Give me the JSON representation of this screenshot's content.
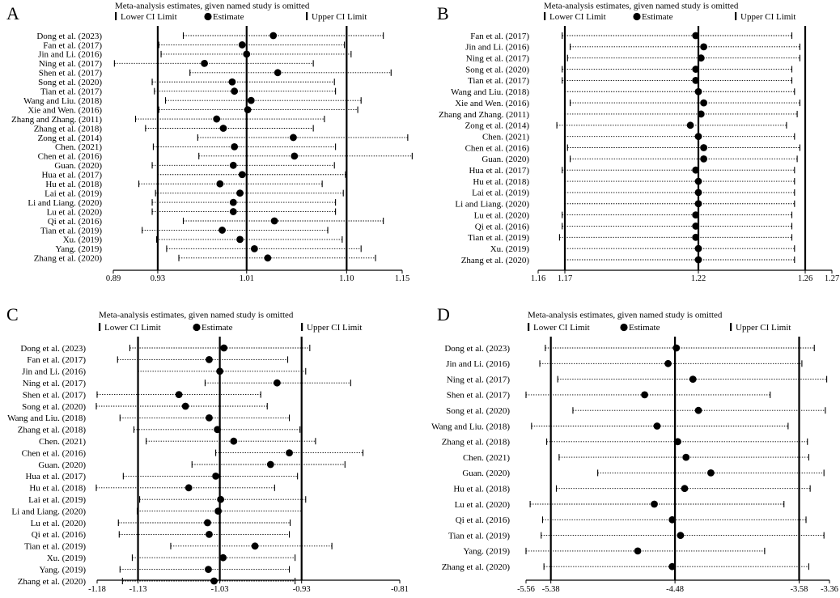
{
  "figure": {
    "legend_header": "Meta-analysis estimates, given named study is omitted",
    "legend_lower": "Lower CI Limit",
    "legend_estimate": "Estimate",
    "legend_upper": "Upper CI Limit",
    "colors": {
      "ink": "#000000",
      "background": "#ffffff"
    }
  },
  "chart_data": [
    {
      "type": "forest",
      "panel": "A",
      "title": "Meta-analysis estimates, given named study is omitted",
      "xlim": [
        0.89,
        1.15
      ],
      "tick_values": [
        0.89,
        0.93,
        1.01,
        1.1,
        1.15
      ],
      "tick_labels": [
        "0.89",
        "0.93",
        "1.01",
        "1.10",
        "1.15"
      ],
      "overall": {
        "lower": 0.93,
        "estimate": 1.01,
        "upper": 1.1
      },
      "studies": [
        {
          "label": "Dong et al. (2023)",
          "estimate": 1.034,
          "lower": 0.953,
          "upper": 1.133
        },
        {
          "label": "Fan et al. (2017)",
          "estimate": 1.006,
          "lower": 0.931,
          "upper": 1.098
        },
        {
          "label": "Jin and Li. (2016)",
          "estimate": 1.01,
          "lower": 0.933,
          "upper": 1.104
        },
        {
          "label": "Ning et al. (2017)",
          "estimate": 0.972,
          "lower": 0.891,
          "upper": 1.07
        },
        {
          "label": "Shen et al. (2017)",
          "estimate": 1.038,
          "lower": 0.959,
          "upper": 1.14
        },
        {
          "label": "Song et al. (2020)",
          "estimate": 0.997,
          "lower": 0.925,
          "upper": 1.089
        },
        {
          "label": "Tian et al. (2017)",
          "estimate": 0.999,
          "lower": 0.927,
          "upper": 1.09
        },
        {
          "label": "Wang and Liu. (2018)",
          "estimate": 1.014,
          "lower": 0.937,
          "upper": 1.113
        },
        {
          "label": "Xie and Wen. (2016)",
          "estimate": 1.011,
          "lower": 0.931,
          "upper": 1.11
        },
        {
          "label": "Zhang and Zhang. (2011)",
          "estimate": 0.983,
          "lower": 0.91,
          "upper": 1.08
        },
        {
          "label": "Zhang et al. (2018)",
          "estimate": 0.989,
          "lower": 0.919,
          "upper": 1.07
        },
        {
          "label": "Zong et al. (2014)",
          "estimate": 1.052,
          "lower": 0.966,
          "upper": 1.155
        },
        {
          "label": "Chen. (2021)",
          "estimate": 0.999,
          "lower": 0.926,
          "upper": 1.09
        },
        {
          "label": "Chen et al. (2016)",
          "estimate": 1.053,
          "lower": 0.967,
          "upper": 1.159
        },
        {
          "label": "Guan. (2020)",
          "estimate": 0.998,
          "lower": 0.925,
          "upper": 1.089
        },
        {
          "label": "Hua et al. (2017)",
          "estimate": 1.006,
          "lower": 0.93,
          "upper": 1.099
        },
        {
          "label": "Hu et al. (2018)",
          "estimate": 0.986,
          "lower": 0.913,
          "upper": 1.078
        },
        {
          "label": "Lai et al. (2019)",
          "estimate": 1.004,
          "lower": 0.928,
          "upper": 1.097
        },
        {
          "label": "Li and Liang. (2020)",
          "estimate": 0.998,
          "lower": 0.925,
          "upper": 1.09
        },
        {
          "label": "Lu et al. (2020)",
          "estimate": 0.998,
          "lower": 0.925,
          "upper": 1.09
        },
        {
          "label": "Qi et al. (2016)",
          "estimate": 1.035,
          "lower": 0.953,
          "upper": 1.133
        },
        {
          "label": "Tian et al. (2019)",
          "estimate": 0.988,
          "lower": 0.916,
          "upper": 1.083
        },
        {
          "label": "Xu. (2019)",
          "estimate": 1.004,
          "lower": 0.929,
          "upper": 1.096
        },
        {
          "label": "Yang. (2019)",
          "estimate": 1.017,
          "lower": 0.938,
          "upper": 1.113
        },
        {
          "label": "Zhang et al. (2020)",
          "estimate": 1.029,
          "lower": 0.949,
          "upper": 1.126
        }
      ]
    },
    {
      "type": "forest",
      "panel": "B",
      "title": "Meta-analysis estimates, given named study is omitted",
      "xlim": [
        1.16,
        1.27
      ],
      "tick_values": [
        1.16,
        1.17,
        1.22,
        1.26,
        1.27
      ],
      "tick_labels": [
        "1.16",
        "1.17",
        "1.22",
        "1.26",
        "1.27"
      ],
      "overall": {
        "lower": 1.17,
        "estimate": 1.22,
        "upper": 1.26
      },
      "studies": [
        {
          "label": "Fan et al. (2017)",
          "estimate": 1.219,
          "lower": 1.169,
          "upper": 1.255
        },
        {
          "label": "Jin and Li. (2016)",
          "estimate": 1.222,
          "lower": 1.172,
          "upper": 1.258
        },
        {
          "label": "Ning et al. (2017)",
          "estimate": 1.221,
          "lower": 1.171,
          "upper": 1.258
        },
        {
          "label": "Song et al. (2020)",
          "estimate": 1.219,
          "lower": 1.169,
          "upper": 1.255
        },
        {
          "label": "Tian et al. (2017)",
          "estimate": 1.219,
          "lower": 1.169,
          "upper": 1.255
        },
        {
          "label": "Wang and Liu. (2018)",
          "estimate": 1.22,
          "lower": 1.17,
          "upper": 1.256
        },
        {
          "label": "Xie and Wen. (2016)",
          "estimate": 1.222,
          "lower": 1.172,
          "upper": 1.258
        },
        {
          "label": "Zhang and Zhang. (2011)",
          "estimate": 1.221,
          "lower": 1.17,
          "upper": 1.257
        },
        {
          "label": "Zong et al. (2014)",
          "estimate": 1.217,
          "lower": 1.167,
          "upper": 1.253
        },
        {
          "label": "Chen. (2021)",
          "estimate": 1.22,
          "lower": 1.17,
          "upper": 1.256
        },
        {
          "label": "Chen et al. (2016)",
          "estimate": 1.222,
          "lower": 1.171,
          "upper": 1.258
        },
        {
          "label": "Guan. (2020)",
          "estimate": 1.222,
          "lower": 1.172,
          "upper": 1.257
        },
        {
          "label": "Hua et al. (2017)",
          "estimate": 1.219,
          "lower": 1.169,
          "upper": 1.256
        },
        {
          "label": "Hu et al. (2018)",
          "estimate": 1.22,
          "lower": 1.17,
          "upper": 1.256
        },
        {
          "label": "Lai et al. (2019)",
          "estimate": 1.22,
          "lower": 1.17,
          "upper": 1.256
        },
        {
          "label": "Li and Liang. (2020)",
          "estimate": 1.22,
          "lower": 1.17,
          "upper": 1.256
        },
        {
          "label": "Lu et al. (2020)",
          "estimate": 1.219,
          "lower": 1.169,
          "upper": 1.255
        },
        {
          "label": "Qi et al. (2016)",
          "estimate": 1.219,
          "lower": 1.169,
          "upper": 1.255
        },
        {
          "label": "Tian et al. (2019)",
          "estimate": 1.219,
          "lower": 1.168,
          "upper": 1.255
        },
        {
          "label": "Xu. (2019)",
          "estimate": 1.22,
          "lower": 1.17,
          "upper": 1.256
        },
        {
          "label": "Zhang et al. (2020)",
          "estimate": 1.22,
          "lower": 1.17,
          "upper": 1.256
        }
      ]
    },
    {
      "type": "forest",
      "panel": "C",
      "title": "Meta-analysis estimates, given named study is omitted",
      "xlim": [
        -1.18,
        -0.81
      ],
      "tick_values": [
        -1.18,
        -1.13,
        -1.03,
        -0.93,
        -0.81
      ],
      "tick_labels": [
        "-1.18",
        "-1.13",
        "-1.03",
        "-0.93",
        "-0.81"
      ],
      "overall": {
        "lower": -1.13,
        "estimate": -1.03,
        "upper": -0.93
      },
      "studies": [
        {
          "label": "Dong et al. (2023)",
          "estimate": -1.025,
          "lower": -1.14,
          "upper": -0.92
        },
        {
          "label": "Fan et al. (2017)",
          "estimate": -1.043,
          "lower": -1.155,
          "upper": -0.947
        },
        {
          "label": "Jin and Li. (2016)",
          "estimate": -1.03,
          "lower": -1.13,
          "upper": -0.925
        },
        {
          "label": "Ning et al. (2017)",
          "estimate": -0.96,
          "lower": -1.048,
          "upper": -0.87
        },
        {
          "label": "Shen et al. (2017)",
          "estimate": -1.08,
          "lower": -1.18,
          "upper": -0.98
        },
        {
          "label": "Song et al. (2020)",
          "estimate": -1.072,
          "lower": -1.181,
          "upper": -0.972
        },
        {
          "label": "Wang and Liu. (2018)",
          "estimate": -1.043,
          "lower": -1.152,
          "upper": -0.945
        },
        {
          "label": "Zhang et al. (2018)",
          "estimate": -1.033,
          "lower": -1.135,
          "upper": -0.932
        },
        {
          "label": "Chen. (2021)",
          "estimate": -1.013,
          "lower": -1.12,
          "upper": -0.913
        },
        {
          "label": "Chen et al. (2016)",
          "estimate": -0.945,
          "lower": -1.035,
          "upper": -0.855
        },
        {
          "label": "Guan. (2020)",
          "estimate": -0.968,
          "lower": -1.064,
          "upper": -0.877
        },
        {
          "label": "Hua et al. (2017)",
          "estimate": -1.035,
          "lower": -1.148,
          "upper": -0.935
        },
        {
          "label": "Hu et al. (2018)",
          "estimate": -1.068,
          "lower": -1.181,
          "upper": -0.963
        },
        {
          "label": "Lai et al. (2019)",
          "estimate": -1.029,
          "lower": -1.128,
          "upper": -0.925
        },
        {
          "label": "Li and Liang. (2020)",
          "estimate": -1.032,
          "lower": -1.131,
          "upper": -0.93
        },
        {
          "label": "Lu et al. (2020)",
          "estimate": -1.045,
          "lower": -1.154,
          "upper": -0.944
        },
        {
          "label": "Qi et al. (2016)",
          "estimate": -1.043,
          "lower": -1.153,
          "upper": -0.945
        },
        {
          "label": "Tian et al. (2019)",
          "estimate": -0.987,
          "lower": -1.09,
          "upper": -0.893
        },
        {
          "label": "Xu. (2019)",
          "estimate": -1.026,
          "lower": -1.137,
          "upper": -0.938
        },
        {
          "label": "Yang. (2019)",
          "estimate": -1.044,
          "lower": -1.152,
          "upper": -0.945
        },
        {
          "label": "Zhang et al. (2020)",
          "estimate": -1.037,
          "lower": -1.149,
          "upper": -0.938
        }
      ]
    },
    {
      "type": "forest",
      "panel": "D",
      "title": "Meta-analysis estimates, given named study is omitted",
      "xlim": [
        -5.56,
        -3.36
      ],
      "tick_values": [
        -5.56,
        -5.38,
        -4.48,
        -3.58,
        -3.36
      ],
      "tick_labels": [
        "-5.56",
        "-5.38",
        "-4.48",
        "-3.58",
        "-3.36"
      ],
      "overall": {
        "lower": -5.38,
        "estimate": -4.48,
        "upper": -3.58
      },
      "studies": [
        {
          "label": "Dong et al. (2023)",
          "estimate": -4.47,
          "lower": -5.42,
          "upper": -3.47
        },
        {
          "label": "Jin and Li. (2016)",
          "estimate": -4.53,
          "lower": -5.46,
          "upper": -3.56
        },
        {
          "label": "Ning et al. (2017)",
          "estimate": -4.35,
          "lower": -5.33,
          "upper": -3.38
        },
        {
          "label": "Shen et al. (2017)",
          "estimate": -4.7,
          "lower": -5.56,
          "upper": -3.79
        },
        {
          "label": "Song et al. (2020)",
          "estimate": -4.31,
          "lower": -5.22,
          "upper": -3.39
        },
        {
          "label": "Wang and Liu. (2018)",
          "estimate": -4.61,
          "lower": -5.52,
          "upper": -3.66
        },
        {
          "label": "Zhang et al. (2018)",
          "estimate": -4.46,
          "lower": -5.41,
          "upper": -3.52
        },
        {
          "label": "Chen. (2021)",
          "estimate": -4.4,
          "lower": -5.32,
          "upper": -3.51
        },
        {
          "label": "Guan. (2020)",
          "estimate": -4.22,
          "lower": -5.04,
          "upper": -3.4
        },
        {
          "label": "Hu et al. (2018)",
          "estimate": -4.41,
          "lower": -5.34,
          "upper": -3.5
        },
        {
          "label": "Lu et al. (2020)",
          "estimate": -4.63,
          "lower": -5.53,
          "upper": -3.69
        },
        {
          "label": "Qi et al. (2016)",
          "estimate": -4.5,
          "lower": -5.44,
          "upper": -3.53
        },
        {
          "label": "Tian et al. (2019)",
          "estimate": -4.44,
          "lower": -5.45,
          "upper": -3.4
        },
        {
          "label": "Yang. (2019)",
          "estimate": -4.75,
          "lower": -5.56,
          "upper": -3.83
        },
        {
          "label": "Zhang et al. (2020)",
          "estimate": -4.5,
          "lower": -5.43,
          "upper": -3.51
        }
      ]
    }
  ]
}
